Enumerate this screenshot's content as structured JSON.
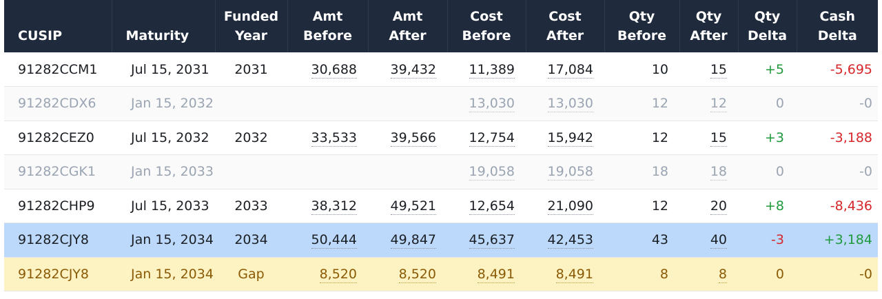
{
  "headers": [
    {
      "l1": "",
      "l2": "CUSIP"
    },
    {
      "l1": "",
      "l2": "Maturity"
    },
    {
      "l1": "Funded",
      "l2": "Year"
    },
    {
      "l1": "Amt",
      "l2": "Before"
    },
    {
      "l1": "Amt",
      "l2": "After"
    },
    {
      "l1": "Cost",
      "l2": "Before"
    },
    {
      "l1": "Cost",
      "l2": "After"
    },
    {
      "l1": "Qty",
      "l2": "Before"
    },
    {
      "l1": "Qty",
      "l2": "After"
    },
    {
      "l1": "Qty",
      "l2": "Delta"
    },
    {
      "l1": "Cash",
      "l2": "Delta"
    }
  ],
  "rows": [
    {
      "cusip": "91282CCM1",
      "maturity": "Jul 15, 2031",
      "funded_year": "2031",
      "amt_before": "30,688",
      "amt_after": "39,432",
      "cost_before": "11,389",
      "cost_after": "17,084",
      "qty_before": "10",
      "qty_after": "15",
      "qty_delta": "+5",
      "cash_delta": "-5,695",
      "state": "normal"
    },
    {
      "cusip": "91282CDX6",
      "maturity": "Jan 15, 2032",
      "funded_year": "",
      "amt_before": "",
      "amt_after": "",
      "cost_before": "13,030",
      "cost_after": "13,030",
      "qty_before": "12",
      "qty_after": "12",
      "qty_delta": "0",
      "cash_delta": "-0",
      "state": "muted"
    },
    {
      "cusip": "91282CEZ0",
      "maturity": "Jul 15, 2032",
      "funded_year": "2032",
      "amt_before": "33,533",
      "amt_after": "39,566",
      "cost_before": "12,754",
      "cost_after": "15,942",
      "qty_before": "12",
      "qty_after": "15",
      "qty_delta": "+3",
      "cash_delta": "-3,188",
      "state": "normal"
    },
    {
      "cusip": "91282CGK1",
      "maturity": "Jan 15, 2033",
      "funded_year": "",
      "amt_before": "",
      "amt_after": "",
      "cost_before": "19,058",
      "cost_after": "19,058",
      "qty_before": "18",
      "qty_after": "18",
      "qty_delta": "0",
      "cash_delta": "-0",
      "state": "muted"
    },
    {
      "cusip": "91282CHP9",
      "maturity": "Jul 15, 2033",
      "funded_year": "2033",
      "amt_before": "38,312",
      "amt_after": "49,521",
      "cost_before": "12,654",
      "cost_after": "21,090",
      "qty_before": "12",
      "qty_after": "20",
      "qty_delta": "+8",
      "cash_delta": "-8,436",
      "state": "normal"
    },
    {
      "cusip": "91282CJY8",
      "maturity": "Jan 15, 2034",
      "funded_year": "2034",
      "amt_before": "50,444",
      "amt_after": "49,847",
      "cost_before": "45,637",
      "cost_after": "42,453",
      "qty_before": "43",
      "qty_after": "40",
      "qty_delta": "-3",
      "cash_delta": "+3,184",
      "state": "selected"
    },
    {
      "cusip": "91282CJY8",
      "maturity": "Jan 15, 2034",
      "funded_year": "Gap",
      "amt_before": "8,520",
      "amt_after": "8,520",
      "cost_before": "8,491",
      "cost_after": "8,491",
      "qty_before": "8",
      "qty_after": "8",
      "qty_delta": "0",
      "cash_delta": "-0",
      "state": "gap"
    }
  ],
  "colors": {
    "header_bg": "#1f2a3c",
    "positive": "#1e9a3c",
    "negative": "#d6262a",
    "selected_row": "#bcd9fb",
    "gap_row": "#fdf3c2"
  }
}
